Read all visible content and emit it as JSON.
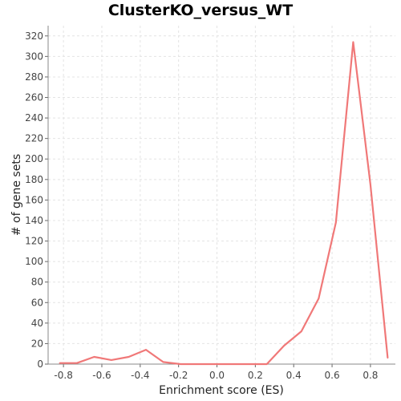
{
  "chart_data": {
    "type": "line",
    "title": "ClusterKO_versus_WT",
    "xlabel": "Enrichment score (ES)",
    "ylabel": "# of gene sets",
    "xlim": [
      -0.88,
      0.93
    ],
    "ylim": [
      0,
      330
    ],
    "x_ticks": [
      "-0.8",
      "-0.6",
      "-0.4",
      "-0.2",
      "0.0",
      "0.2",
      "0.4",
      "0.6",
      "0.8"
    ],
    "y_ticks": [
      "0",
      "20",
      "40",
      "60",
      "80",
      "100",
      "120",
      "140",
      "160",
      "180",
      "200",
      "220",
      "240",
      "260",
      "280",
      "300",
      "320"
    ],
    "grid": true,
    "line_color": "#f07878",
    "series": [
      {
        "x": [
          -0.82,
          -0.73,
          -0.64,
          -0.55,
          -0.46,
          -0.37,
          -0.28,
          -0.19,
          -0.1,
          -0.01,
          0.08,
          0.17,
          0.26,
          0.35,
          0.44,
          0.53,
          0.62,
          0.71,
          0.8,
          0.89
        ],
        "y": [
          1,
          1,
          7,
          4,
          7,
          14,
          2,
          0,
          0,
          0,
          0,
          0,
          0,
          18,
          32,
          64,
          138,
          314,
          175,
          6
        ]
      }
    ]
  }
}
